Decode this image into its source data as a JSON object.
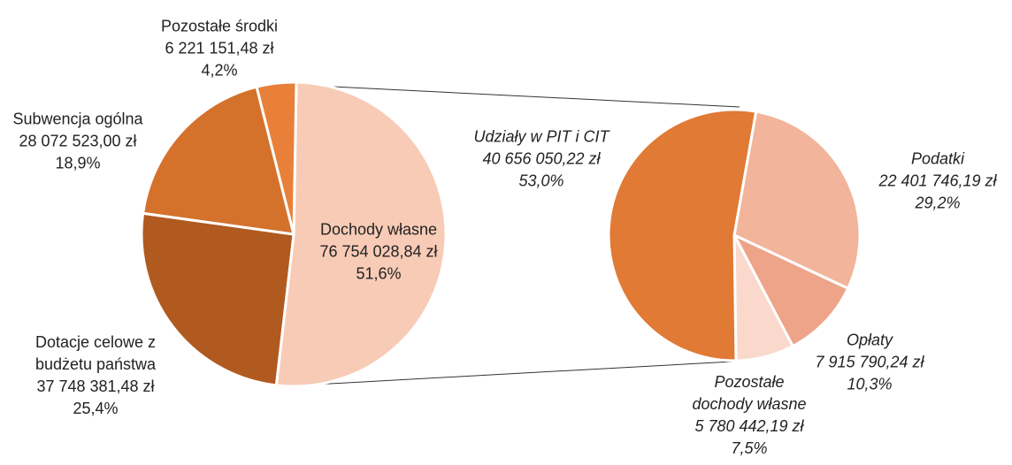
{
  "chart_data": [
    {
      "type": "pie",
      "categories": [
        "Dochody własne",
        "Dotacje celowe z budżetu państwa",
        "Subwencja ogólna",
        "Pozostałe środki"
      ],
      "amounts": [
        "76 754 028,84 zł",
        "37 748 381,48 zł",
        "28 072 523,00 zł",
        "6 221 151,48 zł"
      ],
      "values": [
        51.6,
        25.4,
        18.9,
        4.2
      ],
      "value_labels": [
        "51,6%",
        "25,4%",
        "18,9%",
        "4,2%"
      ],
      "colors": [
        "#f8cbb6",
        "#b05a20",
        "#d4722c",
        "#e8803a"
      ]
    },
    {
      "type": "pie",
      "categories": [
        "Podatki",
        "Opłaty",
        "Pozostałe dochody własne",
        "Udziały w PIT i CIT"
      ],
      "amounts": [
        "22 401 746,19 zł",
        "7 915 790,24 zł",
        "5 780 442,19 zł",
        "40 656 050,22 zł"
      ],
      "values": [
        29.2,
        10.3,
        7.5,
        53.0
      ],
      "value_labels": [
        "29,2%",
        "10,3%",
        "7,5%",
        "53,0%"
      ],
      "colors": [
        "#f2b49a",
        "#eea488",
        "#fad9cc",
        "#e07a35"
      ]
    }
  ]
}
